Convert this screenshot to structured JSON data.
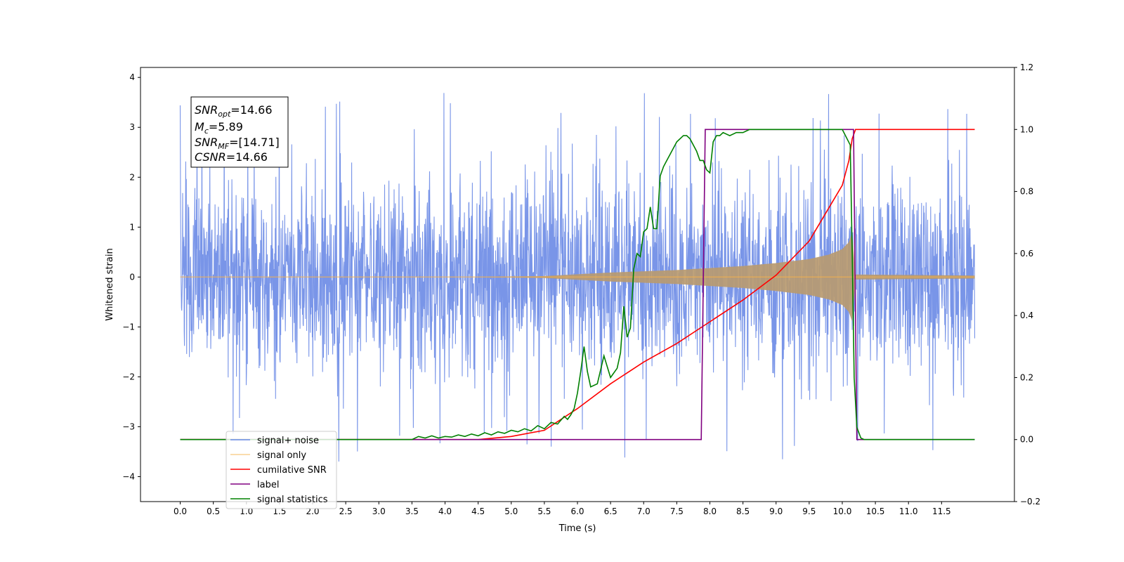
{
  "chart_data": {
    "type": "line",
    "xlabel": "Time (s)",
    "ylabel_left": "Whitened strain",
    "ylabel_right": "",
    "xlim": [
      -0.6,
      12.6
    ],
    "ylim_left": [
      -4.5,
      4.2
    ],
    "ylim_right": [
      -0.2,
      1.2
    ],
    "x_ticks": [
      "0.0",
      "0.5",
      "1.0",
      "1.5",
      "2.0",
      "2.5",
      "3.0",
      "3.5",
      "4.0",
      "4.5",
      "5.0",
      "5.5",
      "6.0",
      "6.5",
      "7.0",
      "7.5",
      "8.0",
      "8.5",
      "9.0",
      "9.5",
      "10.0",
      "10.5",
      "11.0",
      "11.5"
    ],
    "y_ticks_left": [
      "−4",
      "−3",
      "−2",
      "−1",
      "0",
      "1",
      "2",
      "3",
      "4"
    ],
    "y_ticks_right": [
      "−0.2",
      "0.0",
      "0.2",
      "0.4",
      "0.6",
      "0.8",
      "1.0",
      "1.2"
    ],
    "grid": false,
    "legend_position": "lower-left",
    "legend": [
      {
        "label": "signal+ noise",
        "color": "#6a8ae6"
      },
      {
        "label": "signal only",
        "color": "#f5b04a"
      },
      {
        "label": "cumilative SNR",
        "color": "#ff0000"
      },
      {
        "label": "label",
        "color": "#800080"
      },
      {
        "label": "signal statistics",
        "color": "#008000"
      }
    ],
    "annotation": {
      "lines": [
        {
          "base": "SNR",
          "sub": "opt",
          "value": "=14.66"
        },
        {
          "base": "M",
          "sub": "c",
          "value": "=5.89"
        },
        {
          "base": "SNR",
          "sub": "MF",
          "value": "=[14.71]"
        },
        {
          "base": "CSNR",
          "sub": "",
          "value": "=14.66"
        }
      ]
    },
    "series": [
      {
        "name": "signal+ noise",
        "axis": "left",
        "x_range": [
          0.0,
          12.0
        ],
        "typical_amplitude": 1.8,
        "peak_max": 3.8,
        "peak_min": -4.1
      },
      {
        "name": "signal only",
        "axis": "left",
        "x_range": [
          0.0,
          12.0
        ],
        "envelope": {
          "x": [
            0,
            4.5,
            5.5,
            6.5,
            7.5,
            8.5,
            9.0,
            9.5,
            9.8,
            10.0,
            10.1,
            10.15,
            10.2,
            12.0
          ],
          "amp": [
            0,
            0.0,
            0.02,
            0.09,
            0.14,
            0.22,
            0.28,
            0.36,
            0.45,
            0.56,
            0.7,
            0.9,
            0.05,
            0.03
          ]
        }
      },
      {
        "name": "cumilative SNR",
        "axis": "right",
        "x": [
          0,
          4.5,
          5.0,
          5.5,
          6.0,
          6.5,
          7.0,
          7.5,
          8.0,
          8.5,
          9.0,
          9.5,
          10.0,
          10.1,
          10.15,
          10.2,
          12.0
        ],
        "y": [
          0.0,
          0.0,
          0.01,
          0.03,
          0.1,
          0.18,
          0.25,
          0.31,
          0.38,
          0.45,
          0.53,
          0.64,
          0.82,
          0.9,
          0.97,
          1.0,
          1.0
        ]
      },
      {
        "name": "label",
        "axis": "right",
        "x": [
          0,
          7.87,
          7.93,
          10.17,
          10.22,
          12.0
        ],
        "y": [
          0.0,
          0.0,
          1.0,
          1.0,
          0.0,
          0.0
        ]
      },
      {
        "name": "signal statistics",
        "axis": "right",
        "x": [
          0,
          3.5,
          3.6,
          3.7,
          3.8,
          3.9,
          4.0,
          4.1,
          4.2,
          4.3,
          4.4,
          4.5,
          4.6,
          4.7,
          4.8,
          4.9,
          5.0,
          5.1,
          5.2,
          5.3,
          5.4,
          5.5,
          5.6,
          5.7,
          5.8,
          5.85,
          5.9,
          5.95,
          6.0,
          6.05,
          6.1,
          6.15,
          6.2,
          6.3,
          6.4,
          6.5,
          6.6,
          6.65,
          6.7,
          6.75,
          6.8,
          6.85,
          6.9,
          6.95,
          7.0,
          7.05,
          7.1,
          7.15,
          7.2,
          7.25,
          7.3,
          7.35,
          7.4,
          7.5,
          7.6,
          7.65,
          7.7,
          7.8,
          7.85,
          7.9,
          7.95,
          8.0,
          8.05,
          8.1,
          8.15,
          8.2,
          8.3,
          8.4,
          8.5,
          8.6,
          8.7,
          8.8,
          9.0,
          9.2,
          10.0,
          10.12,
          10.15,
          10.18,
          10.22,
          10.28,
          10.33,
          10.4,
          12.0
        ],
        "y": [
          0.0,
          0.0,
          0.01,
          0.005,
          0.012,
          0.005,
          0.01,
          0.008,
          0.015,
          0.01,
          0.018,
          0.012,
          0.022,
          0.015,
          0.025,
          0.02,
          0.03,
          0.025,
          0.035,
          0.028,
          0.045,
          0.035,
          0.055,
          0.05,
          0.075,
          0.065,
          0.08,
          0.1,
          0.15,
          0.22,
          0.3,
          0.22,
          0.17,
          0.18,
          0.27,
          0.2,
          0.23,
          0.28,
          0.43,
          0.33,
          0.36,
          0.55,
          0.6,
          0.59,
          0.67,
          0.68,
          0.75,
          0.68,
          0.68,
          0.85,
          0.88,
          0.9,
          0.92,
          0.96,
          0.98,
          0.98,
          0.97,
          0.93,
          0.9,
          0.9,
          0.87,
          0.86,
          0.96,
          0.98,
          0.98,
          0.99,
          0.98,
          0.99,
          0.99,
          1.0,
          1.0,
          1.0,
          1.0,
          1.0,
          1.0,
          0.95,
          0.6,
          0.2,
          0.04,
          0.005,
          0.0,
          0.0,
          0.0
        ]
      }
    ]
  }
}
